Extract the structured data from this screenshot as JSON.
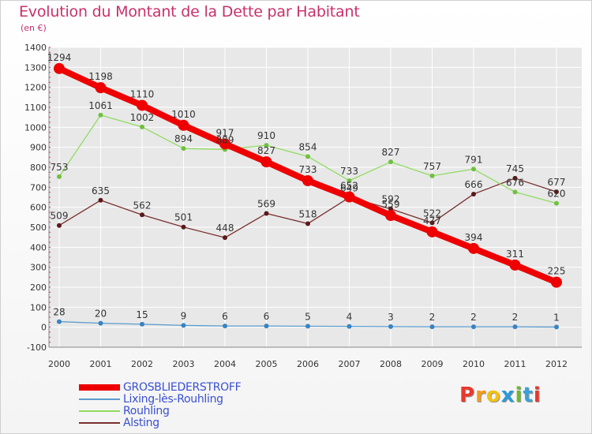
{
  "header": {
    "title": "Evolution du Montant de la Dette par Habitant",
    "subtitle": "(en €)"
  },
  "logo": {
    "text": "Proxiti",
    "letters": [
      "P",
      "r",
      "o",
      "x",
      "i",
      "t",
      "i"
    ],
    "colors": [
      "#e8382c",
      "#f49a1c",
      "#f4c014",
      "#2c9ad8",
      "#6cba2c",
      "#3aa0d8",
      "#e8382c"
    ]
  },
  "chart_data": {
    "type": "line",
    "title": "Evolution du Montant de la Dette par Habitant",
    "subtitle": "(en €)",
    "x": [
      "2000",
      "2001",
      "2002",
      "2003",
      "2004",
      "2005",
      "2006",
      "2007",
      "2008",
      "2009",
      "2010",
      "2011",
      "2012"
    ],
    "ylim": [
      -100,
      1400
    ],
    "yticks": [
      -100,
      0,
      100,
      200,
      300,
      400,
      500,
      600,
      700,
      800,
      900,
      1000,
      1100,
      1200,
      1300,
      1400
    ],
    "grid": true,
    "legend_position": "bottom-left",
    "series": [
      {
        "name": "GROSBLIEDERSTROFF",
        "color": "#ee0000",
        "bold": true,
        "values": [
          1294,
          1198,
          1110,
          1010,
          917,
          827,
          733,
          652,
          559,
          477,
          394,
          311,
          225
        ]
      },
      {
        "name": "Lixing-lès-Rouhling",
        "color": "#5a9ccc",
        "bold": false,
        "values": [
          28,
          20,
          15,
          9,
          6,
          6,
          5,
          4,
          3,
          2,
          2,
          2,
          1
        ]
      },
      {
        "name": "Rouhling",
        "color": "#90dc60",
        "bold": false,
        "values": [
          753,
          1061,
          1002,
          894,
          889,
          910,
          854,
          733,
          827,
          757,
          791,
          676,
          620
        ]
      },
      {
        "name": "Alsting",
        "color": "#7a2e2e",
        "bold": false,
        "values": [
          509,
          635,
          562,
          501,
          448,
          569,
          518,
          649,
          592,
          522,
          666,
          745,
          677
        ]
      }
    ]
  }
}
